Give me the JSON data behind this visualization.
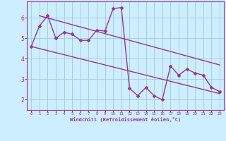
{
  "xlabel": "Windchill (Refroidissement éolien,°C)",
  "background_color": "#cceeff",
  "grid_color": "#aaccdd",
  "line_color": "#993399",
  "x_hours": [
    0,
    1,
    2,
    3,
    4,
    5,
    6,
    7,
    8,
    9,
    10,
    11,
    12,
    13,
    14,
    15,
    16,
    17,
    18,
    19,
    20,
    21,
    22,
    23
  ],
  "y_data": [
    4.6,
    5.6,
    6.1,
    5.0,
    5.3,
    5.2,
    4.9,
    4.9,
    5.4,
    5.35,
    6.45,
    6.5,
    2.55,
    2.2,
    2.6,
    2.2,
    2.0,
    3.65,
    3.2,
    3.5,
    3.3,
    3.2,
    2.6,
    2.4
  ],
  "upper_line": [
    1,
    6.1,
    23,
    3.7
  ],
  "lower_line": [
    0,
    4.6,
    23,
    2.3
  ],
  "ylim": [
    1.5,
    6.8
  ],
  "yticks": [
    2,
    3,
    4,
    5,
    6
  ],
  "xticks": [
    0,
    1,
    2,
    3,
    4,
    5,
    6,
    7,
    8,
    9,
    10,
    11,
    12,
    13,
    14,
    15,
    16,
    17,
    18,
    19,
    20,
    21,
    22,
    23
  ]
}
